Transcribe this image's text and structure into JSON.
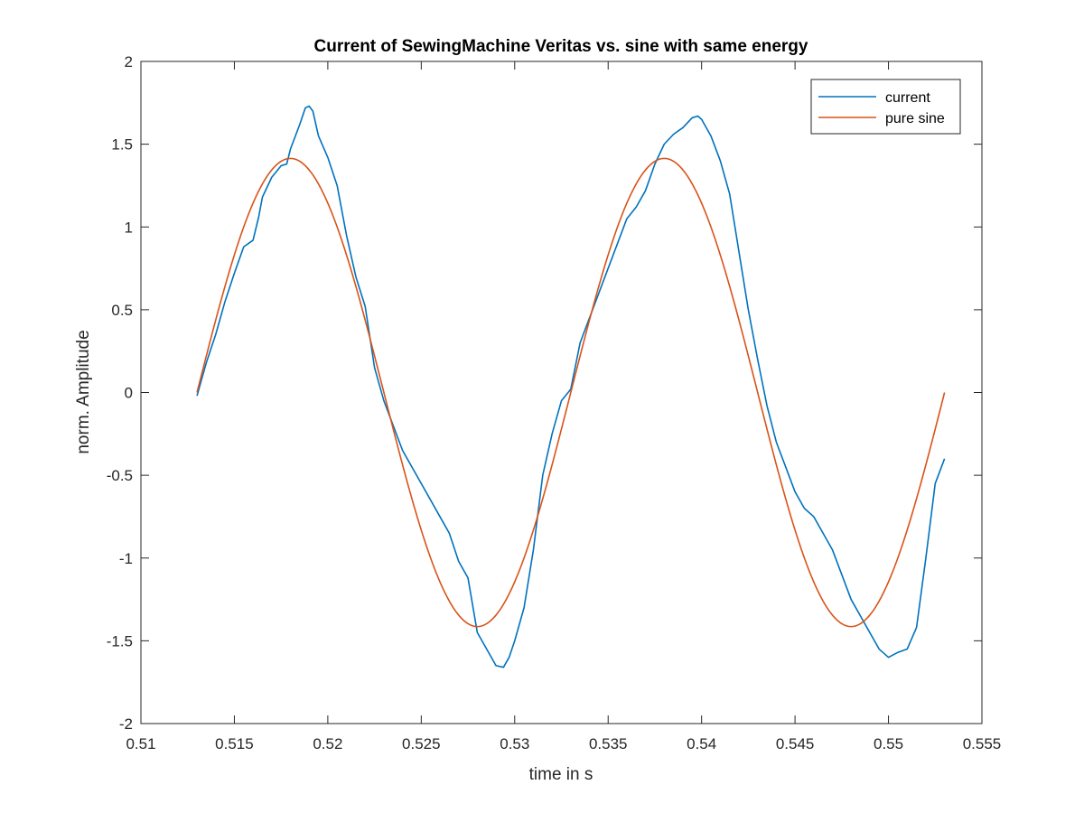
{
  "chart_data": {
    "type": "line",
    "title": "Current of SewingMachine Veritas vs. sine with same energy",
    "xlabel": "time in s",
    "ylabel": "norm. Amplitude",
    "xlim": [
      0.51,
      0.555
    ],
    "ylim": [
      -2,
      2
    ],
    "xticks": [
      0.51,
      0.515,
      0.52,
      0.525,
      0.53,
      0.535,
      0.54,
      0.545,
      0.55,
      0.555
    ],
    "xtick_labels": [
      "0.51",
      "0.515",
      "0.52",
      "0.525",
      "0.53",
      "0.535",
      "0.54",
      "0.545",
      "0.55",
      "0.555"
    ],
    "yticks": [
      -2,
      -1.5,
      -1,
      -0.5,
      0,
      0.5,
      1,
      1.5,
      2
    ],
    "ytick_labels": [
      "-2",
      "-1.5",
      "-1",
      "-0.5",
      "0",
      "0.5",
      "1",
      "1.5",
      "2"
    ],
    "grid": false,
    "legend": {
      "position": "top-right",
      "entries": [
        "current",
        "pure sine"
      ]
    },
    "series": [
      {
        "name": "current",
        "color": "#0072BD",
        "x": [
          0.513,
          0.5135,
          0.514,
          0.5145,
          0.515,
          0.5155,
          0.516,
          0.5163,
          0.5165,
          0.517,
          0.5175,
          0.5178,
          0.518,
          0.5185,
          0.5188,
          0.519,
          0.5192,
          0.5195,
          0.52,
          0.5205,
          0.521,
          0.5215,
          0.522,
          0.5225,
          0.523,
          0.524,
          0.525,
          0.526,
          0.5265,
          0.527,
          0.5275,
          0.528,
          0.5285,
          0.529,
          0.5294,
          0.5297,
          0.53,
          0.5305,
          0.531,
          0.5315,
          0.532,
          0.5325,
          0.533,
          0.5335,
          0.534,
          0.5345,
          0.535,
          0.5355,
          0.536,
          0.5365,
          0.537,
          0.5375,
          0.538,
          0.5385,
          0.539,
          0.5395,
          0.5398,
          0.54,
          0.5405,
          0.541,
          0.5415,
          0.542,
          0.5425,
          0.543,
          0.5435,
          0.544,
          0.5445,
          0.545,
          0.5455,
          0.546,
          0.5465,
          0.547,
          0.5475,
          0.548,
          0.5485,
          0.549,
          0.5495,
          0.55,
          0.5505,
          0.551,
          0.5515,
          0.552,
          0.5525,
          0.553
        ],
        "y": [
          -0.02,
          0.18,
          0.35,
          0.55,
          0.72,
          0.88,
          0.92,
          1.06,
          1.18,
          1.3,
          1.37,
          1.38,
          1.47,
          1.62,
          1.72,
          1.73,
          1.7,
          1.55,
          1.42,
          1.25,
          0.95,
          0.7,
          0.52,
          0.15,
          -0.05,
          -0.35,
          -0.55,
          -0.75,
          -0.85,
          -1.02,
          -1.12,
          -1.45,
          -1.55,
          -1.65,
          -1.66,
          -1.6,
          -1.5,
          -1.3,
          -0.95,
          -0.5,
          -0.25,
          -0.05,
          0.02,
          0.3,
          0.45,
          0.6,
          0.75,
          0.9,
          1.05,
          1.12,
          1.22,
          1.38,
          1.5,
          1.56,
          1.6,
          1.66,
          1.67,
          1.65,
          1.55,
          1.4,
          1.2,
          0.85,
          0.5,
          0.2,
          -0.08,
          -0.3,
          -0.45,
          -0.6,
          -0.7,
          -0.75,
          -0.85,
          -0.95,
          -1.1,
          -1.25,
          -1.35,
          -1.45,
          -1.55,
          -1.6,
          -1.57,
          -1.55,
          -1.42,
          -1.0,
          -0.55,
          -0.4
        ]
      },
      {
        "name": "pure sine",
        "color": "#D95319",
        "amplitude": 1.414,
        "frequency_hz": 50,
        "x_start": 0.513,
        "x_end": 0.553
      }
    ]
  }
}
